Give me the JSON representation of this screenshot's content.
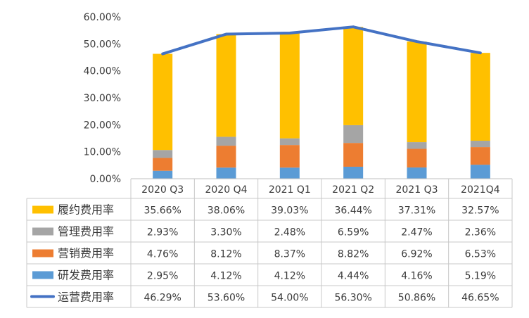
{
  "chart_data": {
    "type": "bar",
    "stacked": true,
    "categories": [
      "2020 Q3",
      "2020 Q4",
      "2021 Q1",
      "2021 Q2",
      "2021 Q3",
      "2021Q4"
    ],
    "ylim": [
      0,
      60
    ],
    "yticks": [
      0,
      10,
      20,
      30,
      40,
      50,
      60
    ],
    "ytick_labels": [
      "0.00%",
      "10.00%",
      "20.00%",
      "30.00%",
      "40.00%",
      "50.00%",
      "60.00%"
    ],
    "grid": false,
    "legend": "data-table",
    "series": [
      {
        "name": "研发费用率",
        "kind": "bar",
        "color": "#5B9BD5",
        "values": [
          2.95,
          4.12,
          4.12,
          4.44,
          4.16,
          5.19
        ],
        "labels": [
          "2.95%",
          "4.12%",
          "4.12%",
          "4.44%",
          "4.16%",
          "5.19%"
        ]
      },
      {
        "name": "营销费用率",
        "kind": "bar",
        "color": "#ED7D31",
        "values": [
          4.76,
          8.12,
          8.37,
          8.82,
          6.92,
          6.53
        ],
        "labels": [
          "4.76%",
          "8.12%",
          "8.37%",
          "8.82%",
          "6.92%",
          "6.53%"
        ]
      },
      {
        "name": "管理费用率",
        "kind": "bar",
        "color": "#A5A5A5",
        "values": [
          2.93,
          3.3,
          2.48,
          6.59,
          2.47,
          2.36
        ],
        "labels": [
          "2.93%",
          "3.30%",
          "2.48%",
          "6.59%",
          "2.47%",
          "2.36%"
        ]
      },
      {
        "name": "履约费用率",
        "kind": "bar",
        "color": "#FFC000",
        "values": [
          35.66,
          38.06,
          39.03,
          36.44,
          37.31,
          32.57
        ],
        "labels": [
          "35.66%",
          "38.06%",
          "39.03%",
          "36.44%",
          "37.31%",
          "32.57%"
        ]
      },
      {
        "name": "运营费用率",
        "kind": "line",
        "color": "#4472C4",
        "values": [
          46.29,
          53.6,
          54.0,
          56.3,
          50.86,
          46.65
        ],
        "labels": [
          "46.29%",
          "53.60%",
          "54.00%",
          "56.30%",
          "50.86%",
          "46.65%"
        ]
      }
    ],
    "table_row_order": [
      "履约费用率",
      "管理费用率",
      "营销费用率",
      "研发费用率",
      "运营费用率"
    ]
  }
}
